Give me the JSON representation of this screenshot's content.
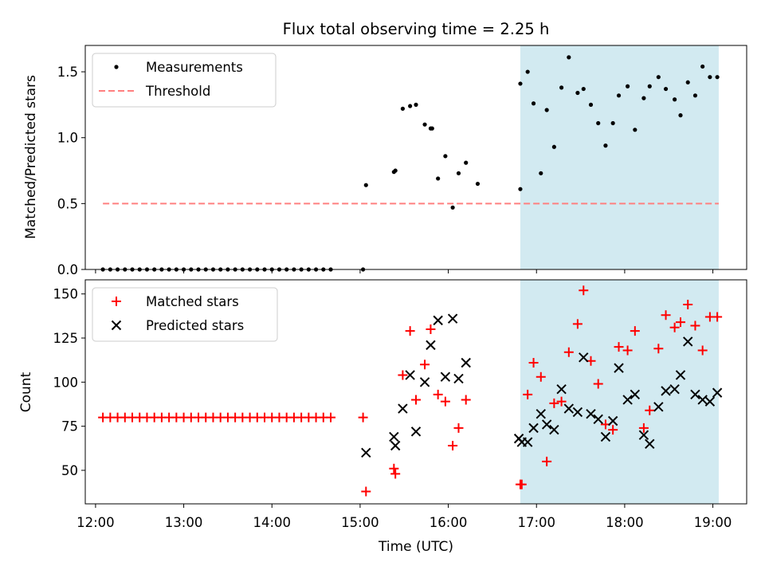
{
  "colors": {
    "highlight": "#add8e6",
    "threshold": "#ff8080",
    "matched": "#ff0000",
    "predicted": "#000000",
    "measurement": "#000000"
  },
  "chart_data": {
    "title": "Flux total observing time = 2.25 h",
    "xlabel": "Time (UTC)",
    "x_ticks": [
      "12:00",
      "13:00",
      "14:00",
      "15:00",
      "16:00",
      "17:00",
      "18:00",
      "19:00"
    ],
    "xlim": [
      "11:53",
      "19:23"
    ],
    "highlight_span": [
      "16:49",
      "19:04"
    ],
    "panels": [
      {
        "type": "scatter",
        "ylabel": "Matched/Predicted stars",
        "ylim": [
          0,
          1.7
        ],
        "y_ticks": [
          "0.0",
          "0.5",
          "1.0",
          "1.5"
        ],
        "legend": {
          "placement": "top-left",
          "entries": [
            "Measurements",
            "Threshold"
          ]
        },
        "threshold": {
          "name": "Threshold",
          "value": 0.5,
          "x_range": [
            "12:05",
            "19:04"
          ]
        },
        "series": [
          {
            "name": "Measurements",
            "marker": "dot",
            "x": [
              "12:05",
              "12:10",
              "12:15",
              "12:20",
              "12:25",
              "12:30",
              "12:35",
              "12:40",
              "12:45",
              "12:50",
              "12:55",
              "13:00",
              "13:05",
              "13:10",
              "13:15",
              "13:20",
              "13:25",
              "13:30",
              "13:35",
              "13:40",
              "13:45",
              "13:50",
              "13:55",
              "14:00",
              "14:05",
              "14:10",
              "14:15",
              "14:20",
              "14:25",
              "14:30",
              "14:35",
              "14:40",
              "15:02",
              "15:04",
              "15:23",
              "15:24",
              "15:29",
              "15:34",
              "15:38",
              "15:44",
              "15:48",
              "15:49",
              "15:53",
              "15:58",
              "16:03",
              "16:07",
              "16:12",
              "16:20",
              "16:49",
              "16:49",
              "16:54",
              "16:58",
              "17:03",
              "17:07",
              "17:12",
              "17:17",
              "17:22",
              "17:28",
              "17:32",
              "17:37",
              "17:42",
              "17:47",
              "17:52",
              "17:56",
              "18:02",
              "18:07",
              "18:13",
              "18:17",
              "18:23",
              "18:28",
              "18:34",
              "18:38",
              "18:43",
              "18:48",
              "18:53",
              "18:58",
              "19:03"
            ],
            "y": [
              0,
              0,
              0,
              0,
              0,
              0,
              0,
              0,
              0,
              0,
              0,
              0,
              0,
              0,
              0,
              0,
              0,
              0,
              0,
              0,
              0,
              0,
              0,
              0,
              0,
              0,
              0,
              0,
              0,
              0,
              0,
              0,
              0,
              0.64,
              0.74,
              0.75,
              1.22,
              1.24,
              1.25,
              1.1,
              1.07,
              1.07,
              0.69,
              0.86,
              0.47,
              0.73,
              0.81,
              0.65,
              0.61,
              1.41,
              1.5,
              1.26,
              0.73,
              1.21,
              0.93,
              1.38,
              1.61,
              1.34,
              1.37,
              1.25,
              1.11,
              0.94,
              1.11,
              1.32,
              1.39,
              1.06,
              1.3,
              1.39,
              1.46,
              1.37,
              1.29,
              1.17,
              1.42,
              1.32,
              1.54,
              1.46,
              1.46
            ]
          }
        ]
      },
      {
        "type": "scatter",
        "ylabel": "Count",
        "ylim": [
          31,
          158
        ],
        "y_ticks": [
          "50",
          "75",
          "100",
          "125",
          "150"
        ],
        "legend": {
          "placement": "top-left",
          "entries": [
            "Matched stars",
            "Predicted stars"
          ]
        },
        "series": [
          {
            "name": "Matched stars",
            "marker": "plus",
            "x": [
              "12:05",
              "12:10",
              "12:15",
              "12:20",
              "12:25",
              "12:30",
              "12:35",
              "12:40",
              "12:45",
              "12:50",
              "12:55",
              "13:00",
              "13:05",
              "13:10",
              "13:15",
              "13:20",
              "13:25",
              "13:30",
              "13:35",
              "13:40",
              "13:45",
              "13:50",
              "13:55",
              "14:00",
              "14:05",
              "14:10",
              "14:15",
              "14:20",
              "14:25",
              "14:30",
              "14:35",
              "14:40",
              "15:02",
              "15:04",
              "15:23",
              "15:24",
              "15:29",
              "15:34",
              "15:38",
              "15:44",
              "15:48",
              "15:53",
              "15:58",
              "16:03",
              "16:07",
              "16:12",
              "16:49",
              "16:50",
              "16:54",
              "16:58",
              "17:03",
              "17:07",
              "17:12",
              "17:17",
              "17:22",
              "17:28",
              "17:32",
              "17:37",
              "17:42",
              "17:47",
              "17:52",
              "17:56",
              "18:02",
              "18:07",
              "18:13",
              "18:17",
              "18:23",
              "18:28",
              "18:34",
              "18:38",
              "18:43",
              "18:48",
              "18:53",
              "18:58",
              "19:03"
            ],
            "y": [
              80,
              80,
              80,
              80,
              80,
              80,
              80,
              80,
              80,
              80,
              80,
              80,
              80,
              80,
              80,
              80,
              80,
              80,
              80,
              80,
              80,
              80,
              80,
              80,
              80,
              80,
              80,
              80,
              80,
              80,
              80,
              80,
              80,
              38,
              51,
              48,
              104,
              129,
              90,
              110,
              130,
              93,
              89,
              64,
              74,
              90,
              42,
              42,
              93,
              111,
              103,
              55,
              88,
              89,
              117,
              133,
              152,
              112,
              99,
              76,
              73,
              120,
              118,
              129,
              74,
              84,
              119,
              138,
              131,
              134,
              144,
              132,
              118,
              137,
              137
            ]
          },
          {
            "name": "Predicted stars",
            "marker": "x",
            "x": [
              "15:04",
              "15:23",
              "15:24",
              "15:29",
              "15:34",
              "15:38",
              "15:44",
              "15:48",
              "15:53",
              "15:58",
              "16:03",
              "16:07",
              "16:12",
              "16:48",
              "16:50",
              "16:54",
              "16:58",
              "17:03",
              "17:07",
              "17:12",
              "17:17",
              "17:22",
              "17:28",
              "17:32",
              "17:37",
              "17:42",
              "17:47",
              "17:52",
              "17:56",
              "18:02",
              "18:07",
              "18:13",
              "18:17",
              "18:23",
              "18:28",
              "18:34",
              "18:38",
              "18:43",
              "18:48",
              "18:53",
              "18:58",
              "19:03"
            ],
            "y": [
              60,
              69,
              64,
              85,
              104,
              72,
              100,
              121,
              135,
              103,
              136,
              102,
              111,
              68,
              66,
              66,
              74,
              82,
              76,
              73,
              96,
              85,
              83,
              114,
              82,
              79,
              69,
              78,
              108,
              90,
              93,
              70,
              65,
              86,
              95,
              96,
              104,
              123,
              93,
              90,
              89,
              94
            ]
          }
        ]
      }
    ]
  }
}
